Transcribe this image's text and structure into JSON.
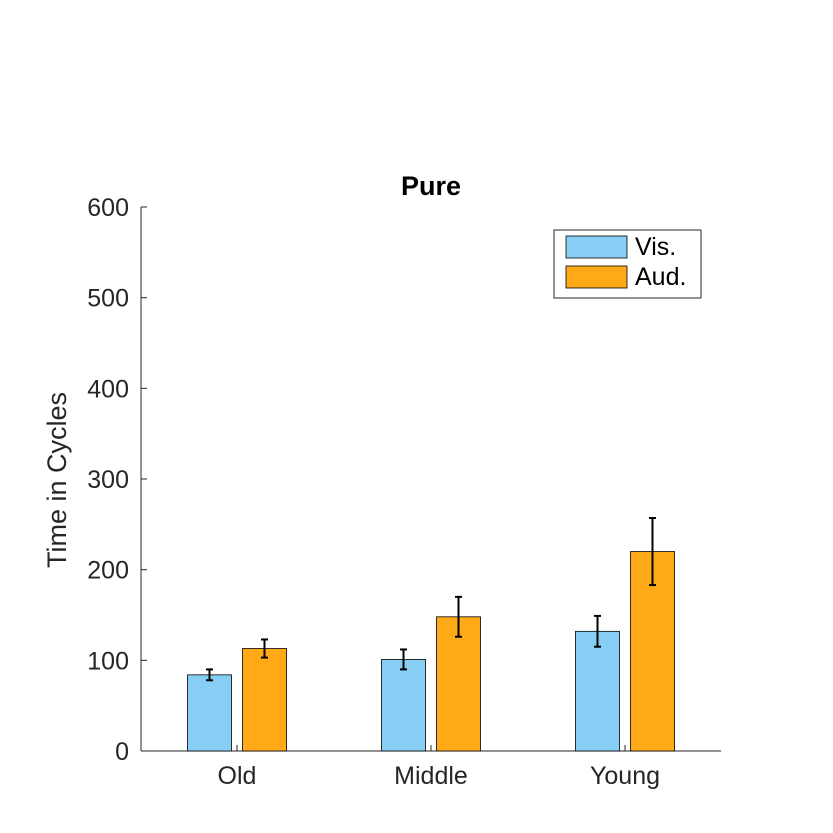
{
  "chart_data": {
    "type": "bar",
    "title": "Pure",
    "xlabel": "",
    "ylabel": "Time in Cycles",
    "ylim": [
      0,
      600
    ],
    "yticks": [
      0,
      100,
      200,
      300,
      400,
      500,
      600
    ],
    "categories": [
      "Old",
      "Middle",
      "Young"
    ],
    "series": [
      {
        "name": "Vis.",
        "color": "#87CEF5",
        "values": [
          84,
          101,
          132
        ],
        "errors": [
          6,
          11,
          17
        ]
      },
      {
        "name": "Aud.",
        "color": "#FFA916",
        "values": [
          113,
          148,
          220
        ],
        "errors": [
          10,
          22,
          37
        ]
      }
    ],
    "legend_position": "top-right",
    "grid": false
  }
}
